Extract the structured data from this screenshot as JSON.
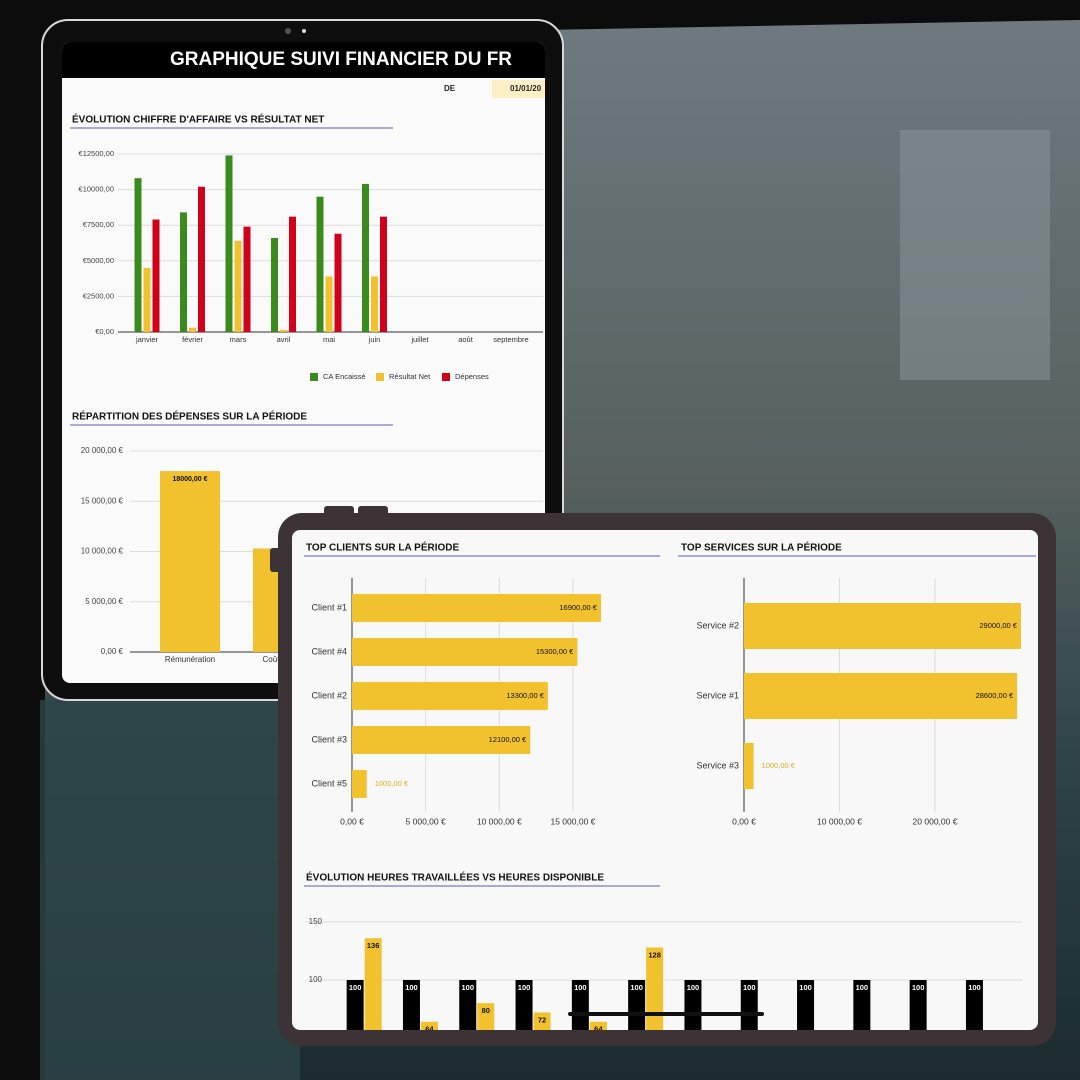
{
  "header": {
    "title": "GRAPHIQUE SUIVI FINANCIER DU FR",
    "from_label": "DE",
    "date": "01/01/20"
  },
  "chart_data": [
    {
      "type": "bar",
      "title": "ÉVOLUTION CHIFFRE D'AFFAIRE VS RÉSULTAT NET",
      "categories": [
        "janvier",
        "février",
        "mars",
        "avril",
        "mai",
        "juin",
        "juillet",
        "août",
        "septembre"
      ],
      "series": [
        {
          "name": "CA Encaissé",
          "color": "#3a8a1e",
          "values": [
            10800,
            8400,
            12400,
            6600,
            9500,
            10400,
            null,
            null,
            null
          ]
        },
        {
          "name": "Résultat Net",
          "color": "#f2c12e",
          "values": [
            4500,
            300,
            6400,
            150,
            3900,
            3900,
            null,
            null,
            null
          ]
        },
        {
          "name": "Dépenses",
          "color": "#d0021b",
          "values": [
            7900,
            10200,
            7400,
            8100,
            6900,
            8100,
            null,
            null,
            null
          ]
        }
      ],
      "ylim": [
        0,
        12500
      ],
      "yticks": [
        {
          "value": 0,
          "label": "€0,00"
        },
        {
          "value": 2500,
          "label": "€2500,00"
        },
        {
          "value": 5000,
          "label": "€5000,00"
        },
        {
          "value": 7500,
          "label": "€7500,00"
        },
        {
          "value": 10000,
          "label": "€10000,00"
        },
        {
          "value": 12500,
          "label": "€12500,00"
        }
      ],
      "grid": true,
      "legend": "bottom"
    },
    {
      "type": "bar",
      "title": "RÉPARTITION DES DÉPENSES SUR LA PÉRIODE",
      "categories": [
        "Rémunération",
        "Coûts de fo"
      ],
      "values": [
        18000,
        10300
      ],
      "value_labels": [
        "18000,00 €",
        null
      ],
      "color": "#f2c12e",
      "ylim": [
        0,
        20000
      ],
      "yticks": [
        {
          "value": 0,
          "label": "0,00 €"
        },
        {
          "value": 5000,
          "label": "5 000,00 €"
        },
        {
          "value": 10000,
          "label": "10 000,00 €"
        },
        {
          "value": 15000,
          "label": "15 000,00 €"
        },
        {
          "value": 20000,
          "label": "20 000,00 €"
        }
      ],
      "grid": true
    },
    {
      "type": "barh",
      "title": "TOP CLIENTS SUR LA PÉRIODE",
      "categories": [
        "Client #1",
        "Client #4",
        "Client #2",
        "Client #3",
        "Client #5"
      ],
      "values": [
        16900,
        15300,
        13300,
        12100,
        1000
      ],
      "value_labels": [
        "16900,00 €",
        "15300,00 €",
        "13300,00 €",
        "12100,00 €",
        "1000,00 €"
      ],
      "color": "#f2c12e",
      "xlim": [
        0,
        20000
      ],
      "xticks": [
        {
          "value": 0,
          "label": "0,00 €"
        },
        {
          "value": 5000,
          "label": "5 000,00 €"
        },
        {
          "value": 10000,
          "label": "10 000,00 €"
        },
        {
          "value": 15000,
          "label": "15 000,00 €"
        }
      ],
      "grid": true
    },
    {
      "type": "barh",
      "title": "TOP SERVICES SUR LA PÉRIODE",
      "categories": [
        "Service #2",
        "Service #1",
        "Service #3"
      ],
      "values": [
        29000,
        28600,
        1000
      ],
      "value_labels": [
        "29000,00 €",
        "28600,00 €",
        "1000,00 €"
      ],
      "color": "#f2c12e",
      "xlim": [
        0,
        30000
      ],
      "xticks": [
        {
          "value": 0,
          "label": "0,00 €"
        },
        {
          "value": 10000,
          "label": "10 000,00 €"
        },
        {
          "value": 20000,
          "label": "20 000,00 €"
        }
      ],
      "grid": true
    },
    {
      "type": "bar",
      "title": "ÉVOLUTION HEURES TRAVAILLÉES VS HEURES DISPONIBLE",
      "categories": [
        null,
        null,
        null,
        null,
        null,
        null,
        null,
        null,
        null,
        null,
        null,
        null
      ],
      "series": [
        {
          "color": "#000000",
          "values": [
            100,
            100,
            100,
            100,
            100,
            100,
            100,
            100,
            100,
            100,
            100,
            100
          ]
        },
        {
          "color": "#f2c12e",
          "values": [
            136,
            64,
            80,
            72,
            64,
            128,
            null,
            null,
            null,
            null,
            null,
            null
          ]
        }
      ],
      "ylim": [
        0,
        150
      ],
      "yticks": [
        100,
        150
      ],
      "grid": true
    }
  ]
}
